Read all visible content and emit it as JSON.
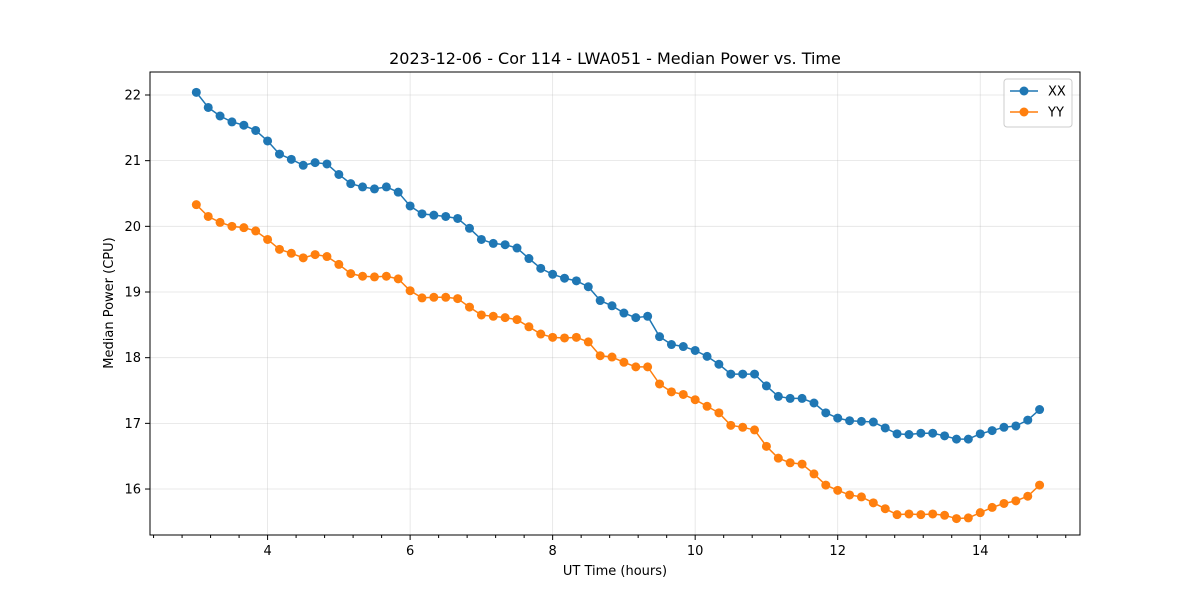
{
  "chart_data": {
    "type": "line",
    "title": "2023-12-06 - Cor 114 - LWA051 - Median Power vs. Time",
    "xlabel": "UT Time (hours)",
    "ylabel": "Median Power (CPU)",
    "xlim": [
      2.35,
      15.4
    ],
    "ylim": [
      15.3,
      22.35
    ],
    "xticks": [
      4,
      6,
      8,
      10,
      12,
      14
    ],
    "yticks": [
      16,
      17,
      18,
      19,
      20,
      21,
      22
    ],
    "xtick_labels": [
      "4",
      "6",
      "8",
      "10",
      "12",
      "14"
    ],
    "ytick_labels": [
      "16",
      "17",
      "18",
      "19",
      "20",
      "21",
      "22"
    ],
    "x_minor_step": 0.4,
    "grid": true,
    "legend_position": "top-right",
    "x": [
      3.0,
      3.167,
      3.333,
      3.5,
      3.667,
      3.833,
      4.0,
      4.167,
      4.333,
      4.5,
      4.667,
      4.833,
      5.0,
      5.167,
      5.333,
      5.5,
      5.667,
      5.833,
      6.0,
      6.167,
      6.333,
      6.5,
      6.667,
      6.833,
      7.0,
      7.167,
      7.333,
      7.5,
      7.667,
      7.833,
      8.0,
      8.167,
      8.333,
      8.5,
      8.667,
      8.833,
      9.0,
      9.167,
      9.333,
      9.5,
      9.667,
      9.833,
      10.0,
      10.167,
      10.333,
      10.5,
      10.667,
      10.833,
      11.0,
      11.167,
      11.333,
      11.5,
      11.667,
      11.833,
      12.0,
      12.167,
      12.333,
      12.5,
      12.667,
      12.833,
      13.0,
      13.167,
      13.333,
      13.5,
      13.667,
      13.833,
      14.0,
      14.167,
      14.333,
      14.5,
      14.667,
      14.833
    ],
    "series": [
      {
        "name": "XX",
        "color": "#1f77b4",
        "values": [
          22.04,
          21.81,
          21.68,
          21.59,
          21.54,
          21.46,
          21.3,
          21.1,
          21.02,
          20.93,
          20.97,
          20.95,
          20.79,
          20.65,
          20.6,
          20.57,
          20.6,
          20.52,
          20.31,
          20.19,
          20.17,
          20.15,
          20.12,
          19.97,
          19.8,
          19.74,
          19.72,
          19.67,
          19.51,
          19.36,
          19.27,
          19.21,
          19.17,
          19.08,
          18.87,
          18.79,
          18.68,
          18.61,
          18.63,
          18.32,
          18.2,
          18.17,
          18.11,
          18.02,
          17.9,
          17.75,
          17.75,
          17.75,
          17.57,
          17.41,
          17.38,
          17.38,
          17.31,
          17.16,
          17.08,
          17.04,
          17.03,
          17.02,
          16.93,
          16.84,
          16.83,
          16.85,
          16.85,
          16.81,
          16.76,
          16.76,
          16.84,
          16.89,
          16.94,
          16.96,
          17.05,
          17.21
        ]
      },
      {
        "name": "YY",
        "color": "#ff7f0e",
        "values": [
          20.33,
          20.15,
          20.06,
          20.0,
          19.98,
          19.93,
          19.8,
          19.65,
          19.59,
          19.52,
          19.57,
          19.54,
          19.42,
          19.28,
          19.24,
          19.23,
          19.24,
          19.2,
          19.02,
          18.91,
          18.92,
          18.92,
          18.9,
          18.77,
          18.65,
          18.63,
          18.61,
          18.58,
          18.47,
          18.36,
          18.31,
          18.3,
          18.31,
          18.24,
          18.03,
          18.01,
          17.93,
          17.86,
          17.86,
          17.6,
          17.48,
          17.44,
          17.36,
          17.26,
          17.16,
          16.97,
          16.94,
          16.9,
          16.65,
          16.47,
          16.4,
          16.38,
          16.23,
          16.06,
          15.98,
          15.91,
          15.88,
          15.79,
          15.7,
          15.61,
          15.62,
          15.61,
          15.62,
          15.6,
          15.55,
          15.56,
          15.64,
          15.72,
          15.78,
          15.82,
          15.89,
          16.06
        ]
      }
    ]
  }
}
